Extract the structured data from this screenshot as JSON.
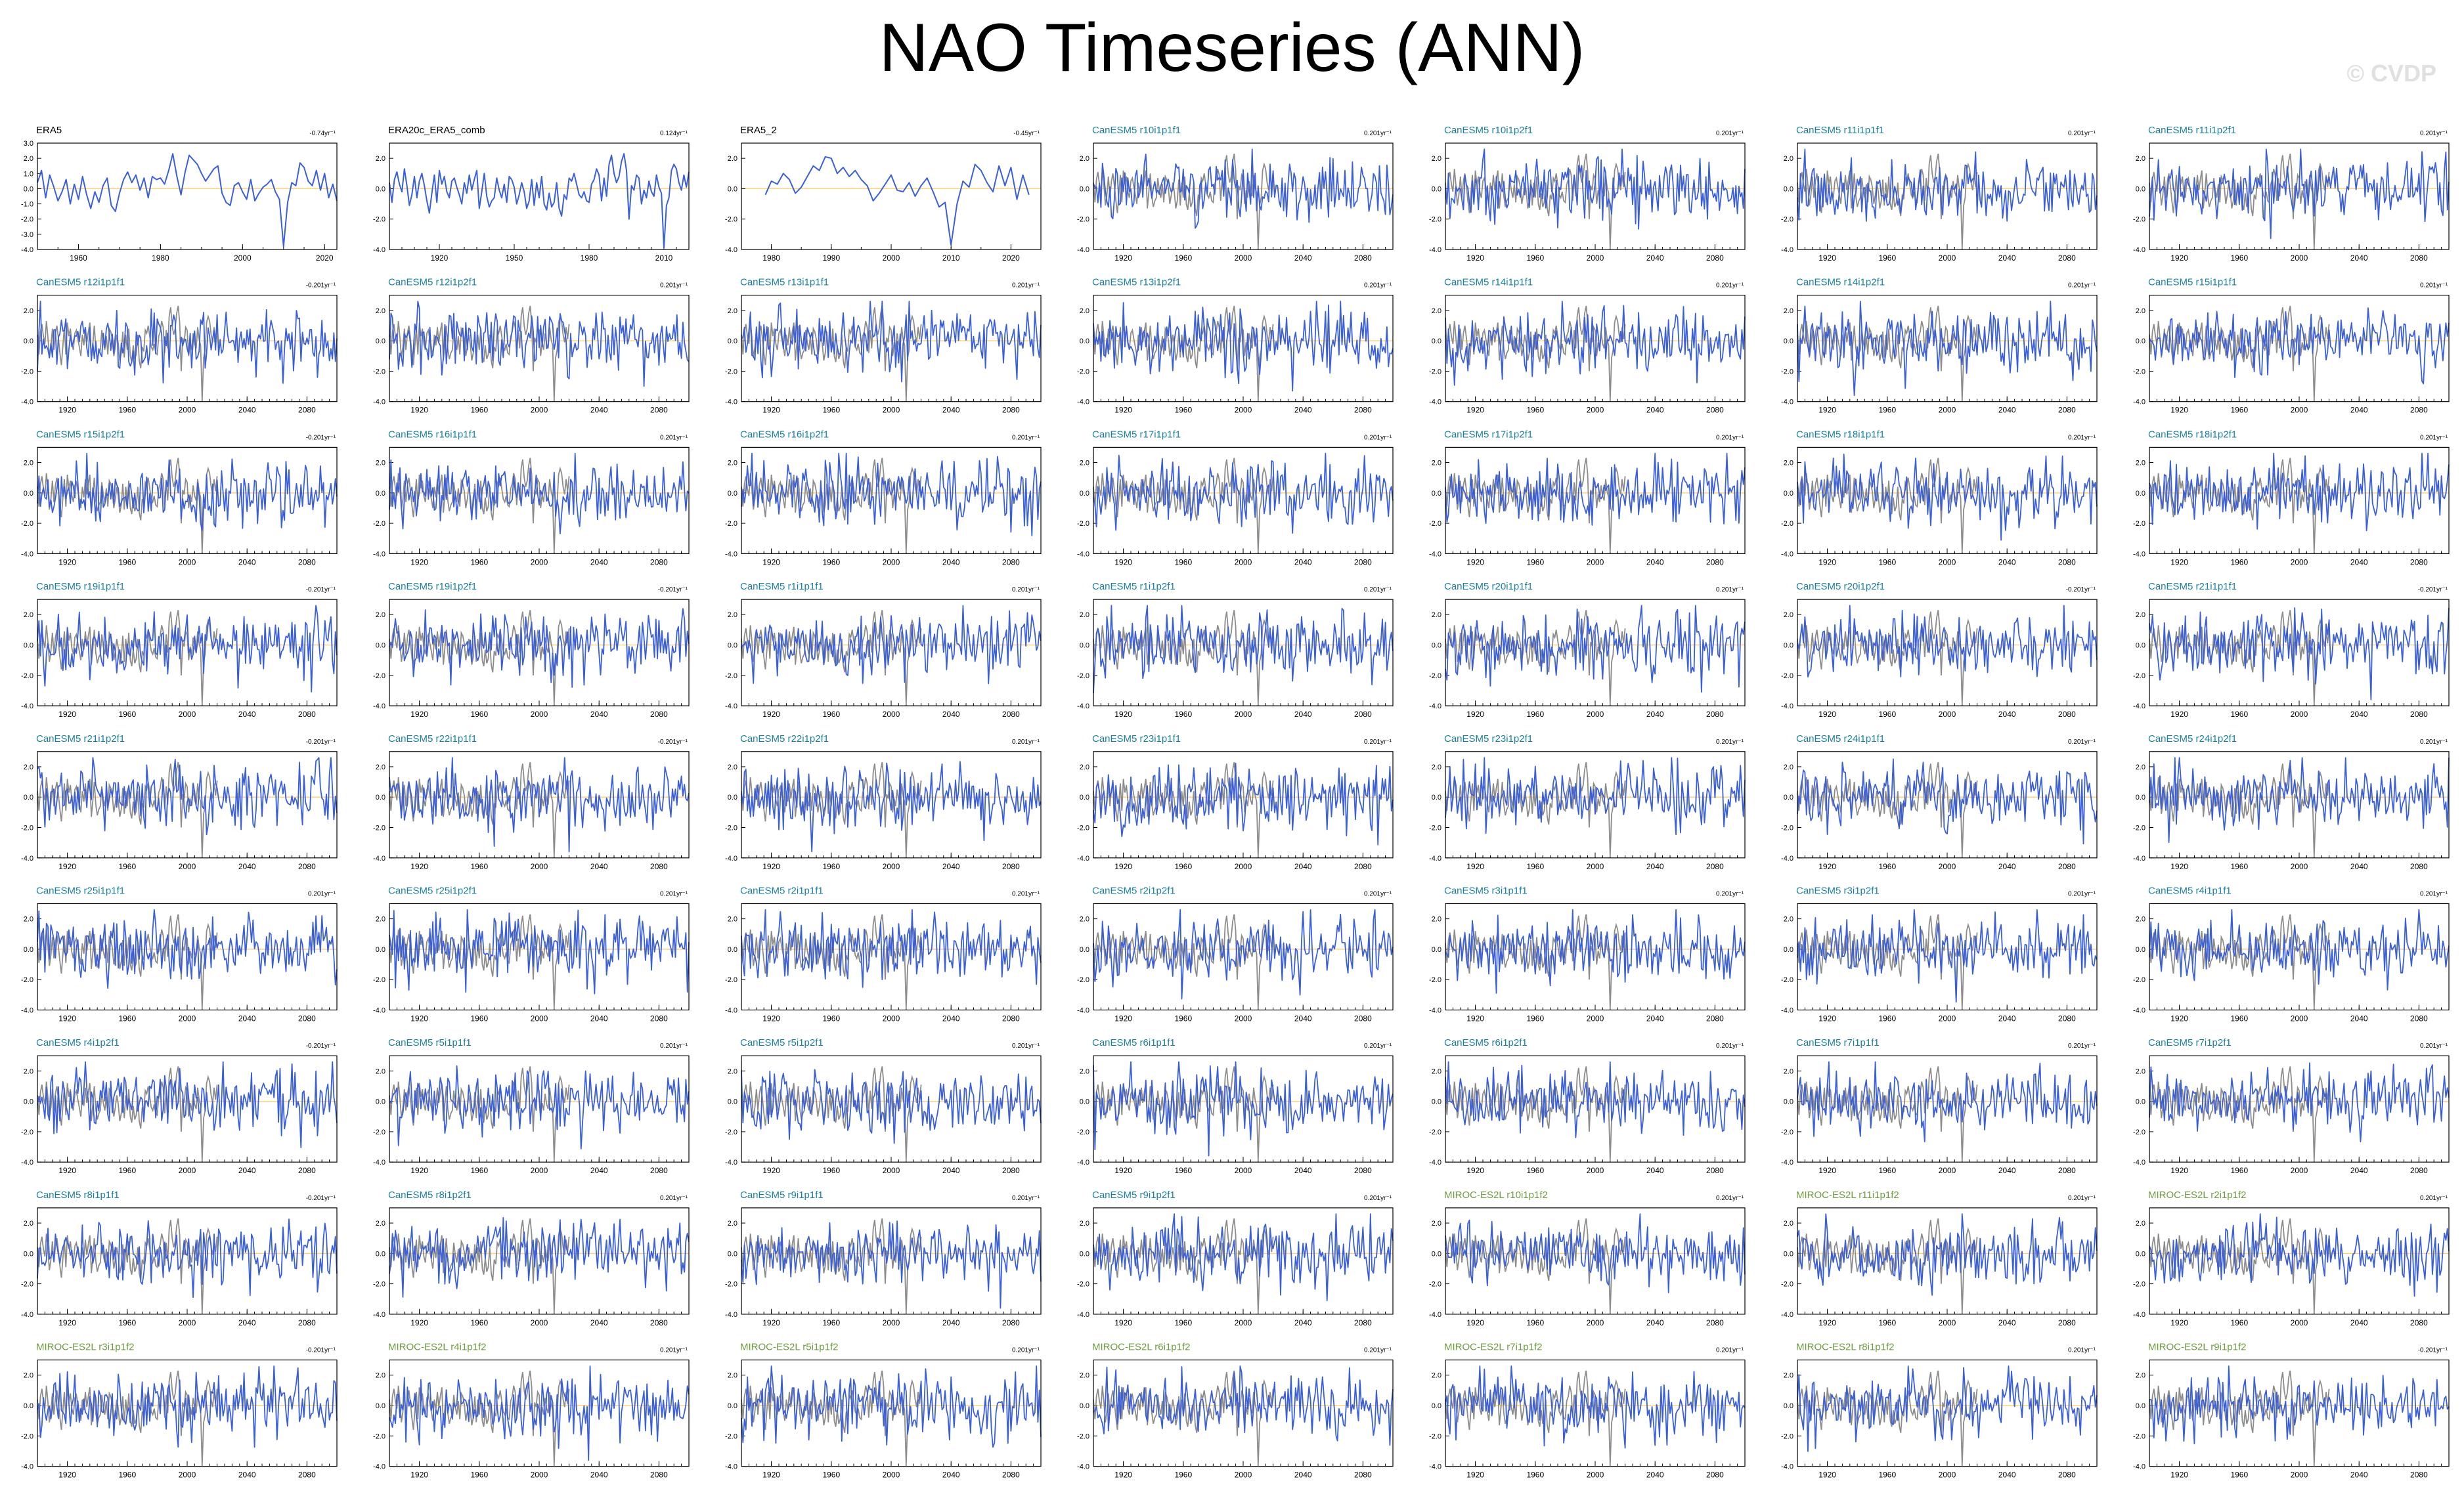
{
  "title": "NAO Timeseries (ANN)",
  "watermark": "© CVDP",
  "colors": {
    "model_line": "#3a5fd9",
    "obs_line": "#8c8c8c",
    "zero_line": "#ffd27a",
    "obs_label": "#000000",
    "canesm_label": "#1a7fa0",
    "miroc_label": "#6d9c3f"
  },
  "chart_data": {
    "type": "line",
    "layout": "grid of 63 panels, 7 columns x 9 rows",
    "ylim": [
      -4.0,
      3.0
    ],
    "panels": [
      {
        "name": "ERA5",
        "trend": "-0.74yr⁻¹",
        "group": "obs",
        "xlim": [
          1950,
          2023
        ],
        "xticks": [
          "1960",
          "1980",
          "2000",
          "2020"
        ],
        "yticks": [
          "3.0",
          "2.0",
          "1.0",
          "0.0",
          "-1.0",
          "-2.0",
          "-3.0",
          "-4.0"
        ]
      },
      {
        "name": "ERA20c_ERA5_comb",
        "trend": "0.124yr⁻¹",
        "group": "obs",
        "xlim": [
          1900,
          2020
        ],
        "xticks": [
          "1920",
          "1950",
          "1980",
          "2010"
        ],
        "yticks": [
          "2.0",
          "0.0",
          "-2.0",
          "-4.0"
        ]
      },
      {
        "name": "ERA5_2",
        "trend": "-0.45yr⁻¹",
        "group": "obs",
        "xlim": [
          1975,
          2025
        ],
        "xticks": [
          "1980",
          "1990",
          "2000",
          "2010",
          "2020"
        ],
        "yticks": [
          "2.0",
          "0.0",
          "-2.0",
          "-4.0"
        ]
      },
      {
        "name": "CanESM5 r10i1p1f1",
        "trend": "0.201yr⁻¹",
        "group": "canesm"
      },
      {
        "name": "CanESM5 r10i1p2f1",
        "trend": "0.201yr⁻¹",
        "group": "canesm"
      },
      {
        "name": "CanESM5 r11i1p1f1",
        "trend": "0.201yr⁻¹",
        "group": "canesm"
      },
      {
        "name": "CanESM5 r11i1p2f1",
        "trend": "0.201yr⁻¹",
        "group": "canesm"
      },
      {
        "name": "CanESM5 r12i1p1f1",
        "trend": "-0.201yr⁻¹",
        "group": "canesm"
      },
      {
        "name": "CanESM5 r12i1p2f1",
        "trend": "0.201yr⁻¹",
        "group": "canesm"
      },
      {
        "name": "CanESM5 r13i1p1f1",
        "trend": "0.201yr⁻¹",
        "group": "canesm"
      },
      {
        "name": "CanESM5 r13i1p2f1",
        "trend": "0.201yr⁻¹",
        "group": "canesm"
      },
      {
        "name": "CanESM5 r14i1p1f1",
        "trend": "0.201yr⁻¹",
        "group": "canesm"
      },
      {
        "name": "CanESM5 r14i1p2f1",
        "trend": "0.201yr⁻¹",
        "group": "canesm"
      },
      {
        "name": "CanESM5 r15i1p1f1",
        "trend": "0.201yr⁻¹",
        "group": "canesm"
      },
      {
        "name": "CanESM5 r15i1p2f1",
        "trend": "-0.201yr⁻¹",
        "group": "canesm"
      },
      {
        "name": "CanESM5 r16i1p1f1",
        "trend": "0.201yr⁻¹",
        "group": "canesm"
      },
      {
        "name": "CanESM5 r16i1p2f1",
        "trend": "0.201yr⁻¹",
        "group": "canesm"
      },
      {
        "name": "CanESM5 r17i1p1f1",
        "trend": "0.201yr⁻¹",
        "group": "canesm"
      },
      {
        "name": "CanESM5 r17i1p2f1",
        "trend": "0.201yr⁻¹",
        "group": "canesm"
      },
      {
        "name": "CanESM5 r18i1p1f1",
        "trend": "0.201yr⁻¹",
        "group": "canesm"
      },
      {
        "name": "CanESM5 r18i1p2f1",
        "trend": "0.201yr⁻¹",
        "group": "canesm"
      },
      {
        "name": "CanESM5 r19i1p1f1",
        "trend": "-0.201yr⁻¹",
        "group": "canesm"
      },
      {
        "name": "CanESM5 r19i1p2f1",
        "trend": "-0.201yr⁻¹",
        "group": "canesm"
      },
      {
        "name": "CanESM5 r1i1p1f1",
        "trend": "0.201yr⁻¹",
        "group": "canesm"
      },
      {
        "name": "CanESM5 r1i1p2f1",
        "trend": "0.201yr⁻¹",
        "group": "canesm"
      },
      {
        "name": "CanESM5 r20i1p1f1",
        "trend": "0.201yr⁻¹",
        "group": "canesm"
      },
      {
        "name": "CanESM5 r20i1p2f1",
        "trend": "-0.201yr⁻¹",
        "group": "canesm"
      },
      {
        "name": "CanESM5 r21i1p1f1",
        "trend": "-0.201yr⁻¹",
        "group": "canesm"
      },
      {
        "name": "CanESM5 r21i1p2f1",
        "trend": "-0.201yr⁻¹",
        "group": "canesm"
      },
      {
        "name": "CanESM5 r22i1p1f1",
        "trend": "-0.201yr⁻¹",
        "group": "canesm"
      },
      {
        "name": "CanESM5 r22i1p2f1",
        "trend": "0.201yr⁻¹",
        "group": "canesm"
      },
      {
        "name": "CanESM5 r23i1p1f1",
        "trend": "0.201yr⁻¹",
        "group": "canesm"
      },
      {
        "name": "CanESM5 r23i1p2f1",
        "trend": "0.201yr⁻¹",
        "group": "canesm"
      },
      {
        "name": "CanESM5 r24i1p1f1",
        "trend": "0.201yr⁻¹",
        "group": "canesm"
      },
      {
        "name": "CanESM5 r24i1p2f1",
        "trend": "0.201yr⁻¹",
        "group": "canesm"
      },
      {
        "name": "CanESM5 r25i1p1f1",
        "trend": "0.201yr⁻¹",
        "group": "canesm"
      },
      {
        "name": "CanESM5 r25i1p2f1",
        "trend": "0.201yr⁻¹",
        "group": "canesm"
      },
      {
        "name": "CanESM5 r2i1p1f1",
        "trend": "0.201yr⁻¹",
        "group": "canesm"
      },
      {
        "name": "CanESM5 r2i1p2f1",
        "trend": "0.201yr⁻¹",
        "group": "canesm"
      },
      {
        "name": "CanESM5 r3i1p1f1",
        "trend": "0.201yr⁻¹",
        "group": "canesm"
      },
      {
        "name": "CanESM5 r3i1p2f1",
        "trend": "0.201yr⁻¹",
        "group": "canesm"
      },
      {
        "name": "CanESM5 r4i1p1f1",
        "trend": "0.201yr⁻¹",
        "group": "canesm"
      },
      {
        "name": "CanESM5 r4i1p2f1",
        "trend": "-0.201yr⁻¹",
        "group": "canesm"
      },
      {
        "name": "CanESM5 r5i1p1f1",
        "trend": "0.201yr⁻¹",
        "group": "canesm"
      },
      {
        "name": "CanESM5 r5i1p2f1",
        "trend": "0.201yr⁻¹",
        "group": "canesm"
      },
      {
        "name": "CanESM5 r6i1p1f1",
        "trend": "0.201yr⁻¹",
        "group": "canesm"
      },
      {
        "name": "CanESM5 r6i1p2f1",
        "trend": "0.201yr⁻¹",
        "group": "canesm"
      },
      {
        "name": "CanESM5 r7i1p1f1",
        "trend": "0.201yr⁻¹",
        "group": "canesm"
      },
      {
        "name": "CanESM5 r7i1p2f1",
        "trend": "0.201yr⁻¹",
        "group": "canesm"
      },
      {
        "name": "CanESM5 r8i1p1f1",
        "trend": "-0.201yr⁻¹",
        "group": "canesm"
      },
      {
        "name": "CanESM5 r8i1p2f1",
        "trend": "0.201yr⁻¹",
        "group": "canesm"
      },
      {
        "name": "CanESM5 r9i1p1f1",
        "trend": "0.201yr⁻¹",
        "group": "canesm"
      },
      {
        "name": "CanESM5 r9i1p2f1",
        "trend": "0.201yr⁻¹",
        "group": "canesm"
      },
      {
        "name": "MIROC-ES2L r10i1p1f2",
        "trend": "0.201yr⁻¹",
        "group": "miroc"
      },
      {
        "name": "MIROC-ES2L r11i1p1f2",
        "trend": "0.201yr⁻¹",
        "group": "miroc"
      },
      {
        "name": "MIROC-ES2L r2i1p1f2",
        "trend": "0.201yr⁻¹",
        "group": "miroc"
      },
      {
        "name": "MIROC-ES2L r3i1p1f2",
        "trend": "-0.201yr⁻¹",
        "group": "miroc"
      },
      {
        "name": "MIROC-ES2L r4i1p1f2",
        "trend": "0.201yr⁻¹",
        "group": "miroc"
      },
      {
        "name": "MIROC-ES2L r5i1p1f2",
        "trend": "0.201yr⁻¹",
        "group": "miroc"
      },
      {
        "name": "MIROC-ES2L r6i1p1f2",
        "trend": "0.201yr⁻¹",
        "group": "miroc"
      },
      {
        "name": "MIROC-ES2L r7i1p1f2",
        "trend": "0.201yr⁻¹",
        "group": "miroc"
      },
      {
        "name": "MIROC-ES2L r8i1p1f2",
        "trend": "0.201yr⁻¹",
        "group": "miroc"
      },
      {
        "name": "MIROC-ES2L r9i1p1f2",
        "trend": "-0.201yr⁻¹",
        "group": "miroc"
      }
    ],
    "model_panel_defaults": {
      "xlim": [
        1900,
        2100
      ],
      "xticks": [
        "1920",
        "1960",
        "2000",
        "2040",
        "2080"
      ],
      "yticks": [
        "2.0",
        "0.0",
        "-2.0",
        "-4.0"
      ]
    },
    "reference_series": {
      "name": "ERA20c_ERA5_comb",
      "x": [
        1900,
        1901,
        1902,
        1903,
        1904,
        1905,
        1906,
        1907,
        1908,
        1909,
        1910,
        1911,
        1912,
        1913,
        1914,
        1915,
        1916,
        1917,
        1918,
        1919,
        1920,
        1921,
        1922,
        1923,
        1924,
        1925,
        1926,
        1927,
        1928,
        1929,
        1930,
        1931,
        1932,
        1933,
        1934,
        1935,
        1936,
        1937,
        1938,
        1939,
        1940,
        1941,
        1942,
        1943,
        1944,
        1945,
        1946,
        1947,
        1948,
        1949,
        1950,
        1951,
        1952,
        1953,
        1954,
        1955,
        1956,
        1957,
        1958,
        1959,
        1960,
        1961,
        1962,
        1963,
        1964,
        1965,
        1966,
        1967,
        1968,
        1969,
        1970,
        1971,
        1972,
        1973,
        1974,
        1975,
        1976,
        1977,
        1978,
        1979,
        1980,
        1981,
        1982,
        1983,
        1984,
        1985,
        1986,
        1987,
        1988,
        1989,
        1990,
        1991,
        1992,
        1993,
        1994,
        1995,
        1996,
        1997,
        1998,
        1999,
        2000,
        2001,
        2002,
        2003,
        2004,
        2005,
        2006,
        2007,
        2008,
        2009,
        2010,
        2011,
        2012,
        2013,
        2014,
        2015,
        2016,
        2017,
        2018,
        2019,
        2020
      ],
      "y": [
        0.4,
        -0.9,
        0.6,
        1.1,
        0.3,
        -0.2,
        1.3,
        0.2,
        -1.1,
        -0.4,
        0.8,
        -0.6,
        0.5,
        1.0,
        0.2,
        -0.8,
        -1.6,
        -0.3,
        0.9,
        -0.9,
        1.2,
        0.3,
        0.8,
        -0.2,
        -0.6,
        0.5,
        0.7,
        0.1,
        -0.4,
        -1.0,
        0.4,
        -0.3,
        0.9,
        -0.1,
        0.6,
        1.2,
        -1.3,
        -0.2,
        1.0,
        -0.5,
        -1.2,
        -0.8,
        -0.6,
        0.7,
        -0.1,
        -0.6,
        0.3,
        -0.9,
        0.8,
        0.6,
        0.1,
        -1.0,
        -0.4,
        0.4,
        -0.2,
        -1.3,
        -0.8,
        0.6,
        -1.1,
        0.4,
        -0.6,
        0.8,
        -1.0,
        -1.4,
        -0.3,
        -1.2,
        -0.9,
        0.4,
        -1.3,
        -1.8,
        -0.4,
        -0.7,
        0.7,
        0.5,
        1.0,
        0.3,
        -0.4,
        -0.6,
        -0.2,
        -0.8,
        -0.9,
        0.3,
        0.6,
        1.3,
        0.9,
        -0.8,
        0.7,
        -0.5,
        1.6,
        2.2,
        1.0,
        0.4,
        0.8,
        1.8,
        2.3,
        1.2,
        -2.0,
        0.2,
        -0.1,
        0.9,
        0.7,
        -1.0,
        -0.1,
        -0.6,
        0.5,
        -0.2,
        -0.5,
        0.9,
        0.1,
        -0.3,
        -3.9,
        -1.1,
        -0.6,
        1.2,
        1.6,
        1.3,
        0.4,
        -0.1,
        0.9,
        0.1,
        1.1
      ]
    },
    "observed_series": {
      "ERA5": {
        "x": [
          1950,
          1951,
          1952,
          1953,
          1954,
          1955,
          1956,
          1957,
          1958,
          1959,
          1960,
          1961,
          1962,
          1963,
          1964,
          1965,
          1966,
          1967,
          1968,
          1969,
          1970,
          1971,
          1972,
          1973,
          1974,
          1975,
          1976,
          1977,
          1978,
          1979,
          1980,
          1981,
          1982,
          1983,
          1984,
          1985,
          1986,
          1987,
          1988,
          1989,
          1990,
          1991,
          1992,
          1993,
          1994,
          1995,
          1996,
          1997,
          1998,
          1999,
          2000,
          2001,
          2002,
          2003,
          2004,
          2005,
          2006,
          2007,
          2008,
          2009,
          2010,
          2011,
          2012,
          2013,
          2014,
          2015,
          2016,
          2017,
          2018,
          2019,
          2020,
          2021,
          2022,
          2023
        ],
        "y": [
          0.4,
          1.2,
          -0.6,
          0.9,
          0.1,
          -0.8,
          -0.2,
          0.6,
          -1.0,
          0.3,
          -0.7,
          0.8,
          -0.4,
          -1.3,
          -0.2,
          -0.9,
          0.2,
          0.7,
          -1.1,
          -1.5,
          -0.3,
          0.6,
          1.1,
          0.4,
          0.9,
          -0.1,
          0.7,
          -0.6,
          0.8,
          0.6,
          0.7,
          0.3,
          1.2,
          2.3,
          0.8,
          -0.4,
          1.1,
          2.2,
          1.9,
          1.6,
          1.0,
          0.5,
          0.9,
          1.3,
          1.5,
          -0.3,
          -0.9,
          -1.1,
          0.2,
          0.4,
          -0.2,
          -0.7,
          0.6,
          -0.8,
          -0.3,
          0.1,
          0.3,
          0.6,
          -0.2,
          -0.7,
          -3.8,
          -0.9,
          0.4,
          0.2,
          1.7,
          1.4,
          0.5,
          0.2,
          1.2,
          -0.1,
          1.0,
          -0.6,
          0.3,
          -0.8
        ]
      },
      "ERA5_2": {
        "x": [
          1979,
          1980,
          1981,
          1982,
          1983,
          1984,
          1985,
          1986,
          1987,
          1988,
          1989,
          1990,
          1991,
          1992,
          1993,
          1994,
          1995,
          1996,
          1997,
          1998,
          1999,
          2000,
          2001,
          2002,
          2003,
          2004,
          2005,
          2006,
          2007,
          2008,
          2009,
          2010,
          2011,
          2012,
          2013,
          2014,
          2015,
          2016,
          2017,
          2018,
          2019,
          2020,
          2021,
          2022,
          2023
        ],
        "y": [
          -0.4,
          0.5,
          0.3,
          1.0,
          0.6,
          -0.3,
          0.1,
          0.8,
          1.5,
          1.2,
          2.1,
          2.0,
          1.0,
          1.4,
          0.8,
          1.2,
          0.6,
          0.2,
          -0.8,
          -0.3,
          0.3,
          0.9,
          -0.1,
          -0.2,
          0.4,
          -0.5,
          0.2,
          0.7,
          -0.2,
          -1.2,
          -0.9,
          -3.7,
          -1.0,
          0.5,
          0.1,
          1.6,
          1.2,
          0.4,
          -0.2,
          1.5,
          0.2,
          1.4,
          -0.7,
          0.9,
          -0.4
        ]
      }
    }
  }
}
